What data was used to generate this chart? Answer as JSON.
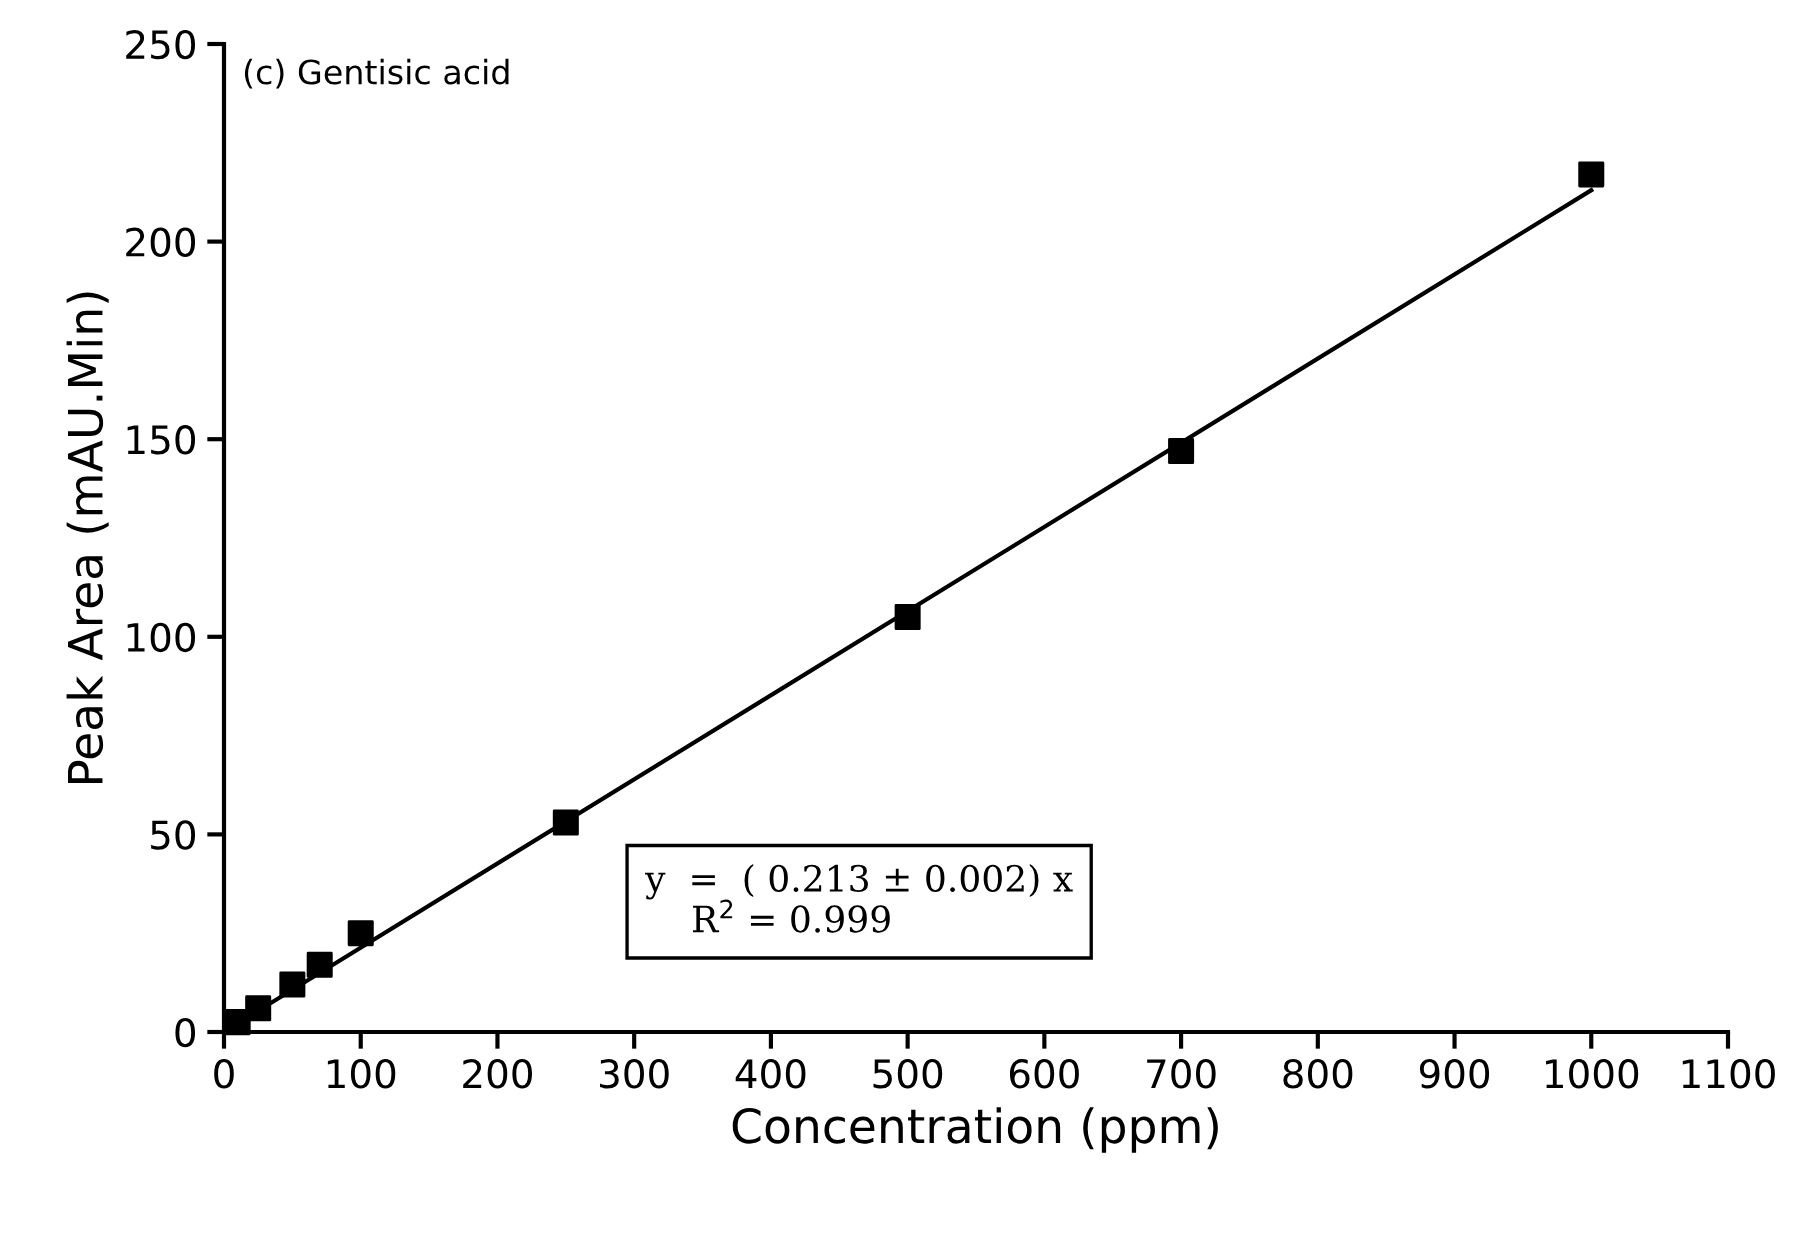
{
  "chart_data": {
    "type": "scatter",
    "xlabel": "Concentration (ppm)",
    "ylabel": "Peak Area (mAU.Min)",
    "annotations": [
      "(c) Gentisic acid",
      "y  =  ( 0.213 ± 0.002) x\n    R$^{2}$ = 0.999"
    ],
    "series": [
      {
        "color": "#000000",
        "marker": "square",
        "x": [
          10,
          25,
          50,
          70,
          100,
          250,
          500,
          700,
          1000
        ],
        "values": [
          2.5,
          6,
          12,
          17,
          25,
          53,
          105,
          147,
          217
        ]
      },
      {
        "type": "line",
        "color": "#000000",
        "marker": "none",
        "line_style": "solid",
        "x": [
          5,
          1000
        ],
        "values": [
          1.1,
          213
        ]
      }
    ],
    "xlim": [
      0,
      1100
    ],
    "xticks": [
      0,
      100,
      200,
      300,
      400,
      500,
      600,
      700,
      800,
      900,
      1000,
      1100
    ],
    "ylim": [
      0,
      250
    ],
    "yticks": [
      0,
      50,
      100,
      150,
      200,
      250
    ],
    "grid": false,
    "legend": false
  }
}
